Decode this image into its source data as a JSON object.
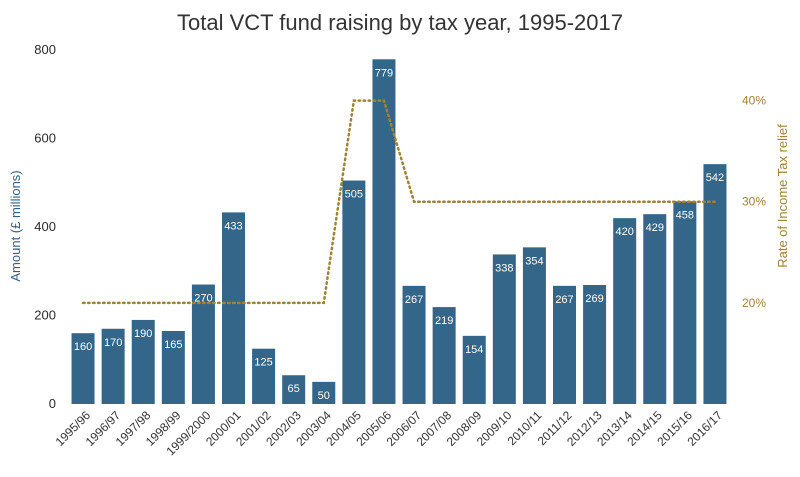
{
  "chart_data": {
    "type": "bar",
    "title": "Total VCT fund raising by tax year, 1995-2017",
    "ylabel": "Amount  (£ millions)",
    "y2label": "Rate of Income Tax relief",
    "ylim": [
      0,
      800
    ],
    "yticks": [
      0,
      200,
      400,
      600,
      800
    ],
    "y2lim": [
      10,
      45
    ],
    "y2ticks": [
      20,
      30,
      40
    ],
    "y2tick_labels": [
      "20%",
      "30%",
      "40%"
    ],
    "grid": false,
    "categories": [
      "1995/96",
      "1996/97",
      "1997/98",
      "1998/99",
      "1999/2000",
      "2000/01",
      "2001/02",
      "2002/03",
      "2003/04",
      "2004/05",
      "2005/06",
      "2006/07",
      "2007/08",
      "2008/09",
      "2009/10",
      "2010/11",
      "2011/12",
      "2012/13",
      "2013/14",
      "2014/15",
      "2015/16",
      "2016/17"
    ],
    "series": [
      {
        "type": "bar",
        "values": [
          160,
          170,
          190,
          165,
          270,
          433,
          125,
          65,
          50,
          505,
          779,
          267,
          219,
          154,
          338,
          354,
          267,
          269,
          420,
          429,
          458,
          542
        ],
        "color": "#336688",
        "axis": "left",
        "data_labels": true
      },
      {
        "type": "line",
        "style": "dotted",
        "values": [
          20,
          20,
          20,
          20,
          20,
          20,
          20,
          20,
          20,
          40,
          40,
          30,
          30,
          30,
          30,
          30,
          30,
          30,
          30,
          30,
          30,
          30
        ],
        "color": "#a08236",
        "axis": "right"
      }
    ]
  }
}
